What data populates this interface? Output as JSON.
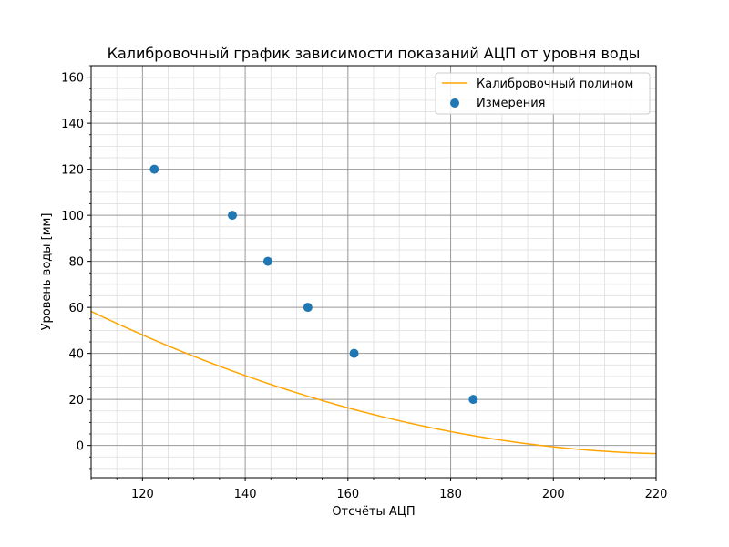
{
  "chart_data": {
    "type": "scatter",
    "title": "Калибровочный график зависимости показаний АЦП от уровня воды",
    "xlabel": "Отсчёты АЦП",
    "ylabel": "Уровень воды [мм]",
    "xlim": [
      110,
      220
    ],
    "ylim": [
      -14,
      165
    ],
    "xticks": [
      120,
      140,
      160,
      180,
      200,
      220
    ],
    "yticks": [
      0,
      20,
      40,
      60,
      80,
      100,
      120,
      140,
      160
    ],
    "x_minor_step": 5,
    "y_minor_step": 5,
    "grid": true,
    "legend_position": "top-right",
    "series": [
      {
        "name": "Калибровочный полином",
        "kind": "line",
        "color": "#ffa500",
        "polynomial": [
          0.0046,
          -2.08,
          231.4
        ]
      },
      {
        "name": "Измерения",
        "kind": "scatter",
        "color": "#1f77b4",
        "x": [
          122.3,
          137.5,
          144.4,
          152.2,
          161.2,
          184.4
        ],
        "y": [
          120,
          100,
          80,
          60,
          40,
          20
        ]
      }
    ]
  }
}
